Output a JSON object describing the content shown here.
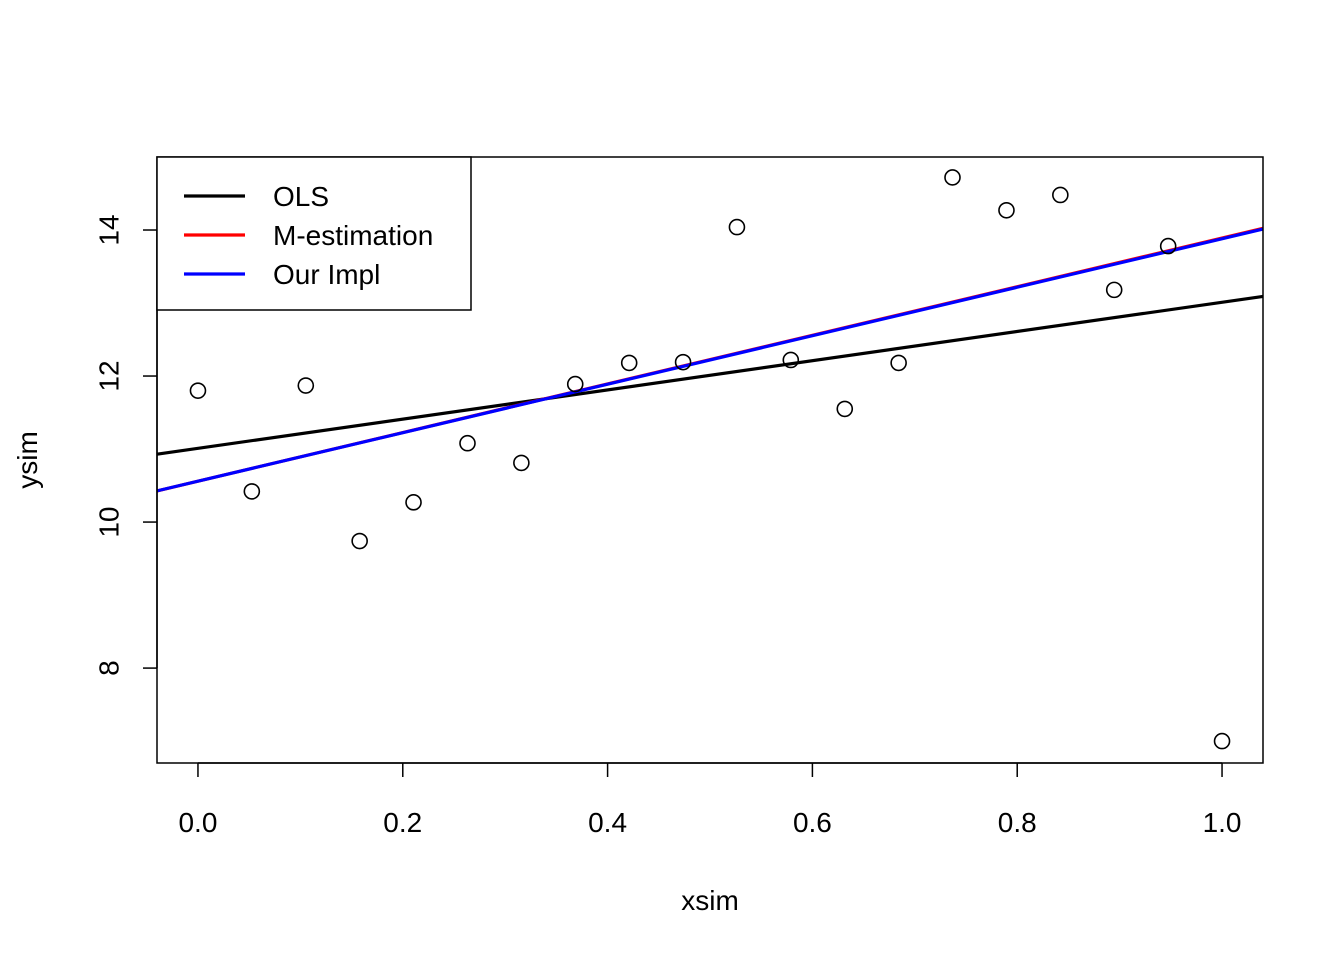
{
  "chart_data": {
    "type": "scatter",
    "title": "",
    "xlabel": "xsim",
    "ylabel": "ysim",
    "xlim": [
      -0.04,
      1.04
    ],
    "ylim": [
      6.7,
      15.0
    ],
    "x_ticks": [
      0.0,
      0.2,
      0.4,
      0.6,
      0.8,
      1.0
    ],
    "x_tick_labels": [
      "0.0",
      "0.2",
      "0.4",
      "0.6",
      "0.8",
      "1.0"
    ],
    "y_ticks": [
      8,
      10,
      12,
      14
    ],
    "y_tick_labels": [
      "8",
      "10",
      "12",
      "14"
    ],
    "grid": false,
    "legend_position": "top-left",
    "points": {
      "x": [
        0.0,
        0.0526,
        0.1053,
        0.1579,
        0.2105,
        0.2632,
        0.3158,
        0.3684,
        0.4211,
        0.4737,
        0.5263,
        0.5789,
        0.6316,
        0.6842,
        0.7368,
        0.7895,
        0.8421,
        0.8947,
        0.9474,
        1.0
      ],
      "y": [
        11.8,
        10.42,
        11.87,
        9.74,
        10.27,
        11.08,
        10.81,
        11.89,
        12.18,
        12.19,
        14.04,
        12.22,
        11.55,
        12.18,
        14.72,
        14.27,
        14.48,
        13.18,
        13.78,
        7.0
      ]
    },
    "series": [
      {
        "name": "OLS",
        "type": "line",
        "color": "#000000",
        "intercept": 11.01,
        "slope": 2.0
      },
      {
        "name": "M-estimation",
        "type": "line",
        "color": "#ff0000",
        "intercept": 10.56,
        "slope": 3.33
      },
      {
        "name": "Our Impl",
        "type": "line",
        "color": "#0000ff",
        "intercept": 10.56,
        "slope": 3.32
      }
    ]
  }
}
